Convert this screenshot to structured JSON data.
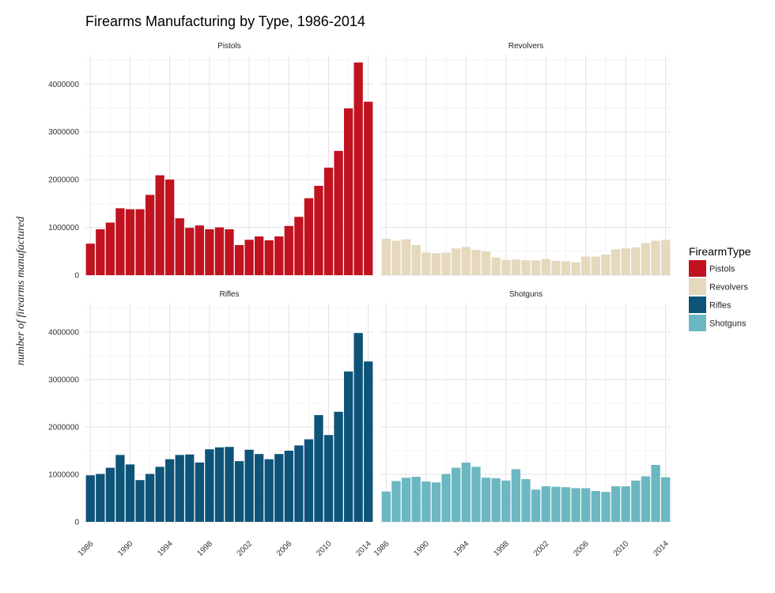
{
  "chart_data": {
    "type": "bar",
    "title": "Firearms Manufacturing by Type, 1986-2014",
    "ylabel": "number of firearms manufactured",
    "xlabel": "",
    "x": [
      1986,
      1987,
      1988,
      1989,
      1990,
      1991,
      1992,
      1993,
      1994,
      1995,
      1996,
      1997,
      1998,
      1999,
      2000,
      2001,
      2002,
      2003,
      2004,
      2005,
      2006,
      2007,
      2008,
      2009,
      2010,
      2011,
      2012,
      2013,
      2014
    ],
    "x_ticks": [
      "1986",
      "1990",
      "1994",
      "1998",
      "2002",
      "2006",
      "2010",
      "2014"
    ],
    "y_ticks": [
      "0",
      "1000000",
      "2000000",
      "3000000",
      "4000000"
    ],
    "ylim": [
      0,
      4600000
    ],
    "grid": true,
    "legend": {
      "title": "FirearmType",
      "position": "right"
    },
    "facets": [
      {
        "name": "Pistols",
        "color": "#C1121F",
        "values": [
          660000,
          960000,
          1100000,
          1400000,
          1380000,
          1380000,
          1680000,
          2090000,
          2000000,
          1190000,
          990000,
          1040000,
          960000,
          1000000,
          960000,
          630000,
          740000,
          810000,
          730000,
          810000,
          1030000,
          1220000,
          1610000,
          1870000,
          2250000,
          2600000,
          3490000,
          4450000,
          3630000
        ]
      },
      {
        "name": "Revolvers",
        "color": "#E5D8BD",
        "values": [
          760000,
          720000,
          750000,
          630000,
          470000,
          460000,
          470000,
          560000,
          590000,
          530000,
          500000,
          370000,
          320000,
          330000,
          310000,
          310000,
          340000,
          300000,
          290000,
          270000,
          390000,
          390000,
          430000,
          540000,
          560000,
          580000,
          670000,
          720000,
          740000
        ]
      },
      {
        "name": "Rifles",
        "color": "#0E5479",
        "values": [
          980000,
          1010000,
          1140000,
          1410000,
          1210000,
          880000,
          1010000,
          1160000,
          1320000,
          1410000,
          1420000,
          1250000,
          1530000,
          1570000,
          1580000,
          1280000,
          1520000,
          1430000,
          1320000,
          1430000,
          1500000,
          1610000,
          1740000,
          2250000,
          1830000,
          2320000,
          3170000,
          3980000,
          3380000
        ]
      },
      {
        "name": "Shotguns",
        "color": "#6CB8C2",
        "values": [
          640000,
          860000,
          930000,
          950000,
          850000,
          830000,
          1010000,
          1140000,
          1250000,
          1160000,
          930000,
          920000,
          870000,
          1110000,
          900000,
          680000,
          750000,
          740000,
          730000,
          710000,
          710000,
          650000,
          630000,
          750000,
          750000,
          870000,
          960000,
          1200000,
          940000
        ]
      }
    ]
  }
}
